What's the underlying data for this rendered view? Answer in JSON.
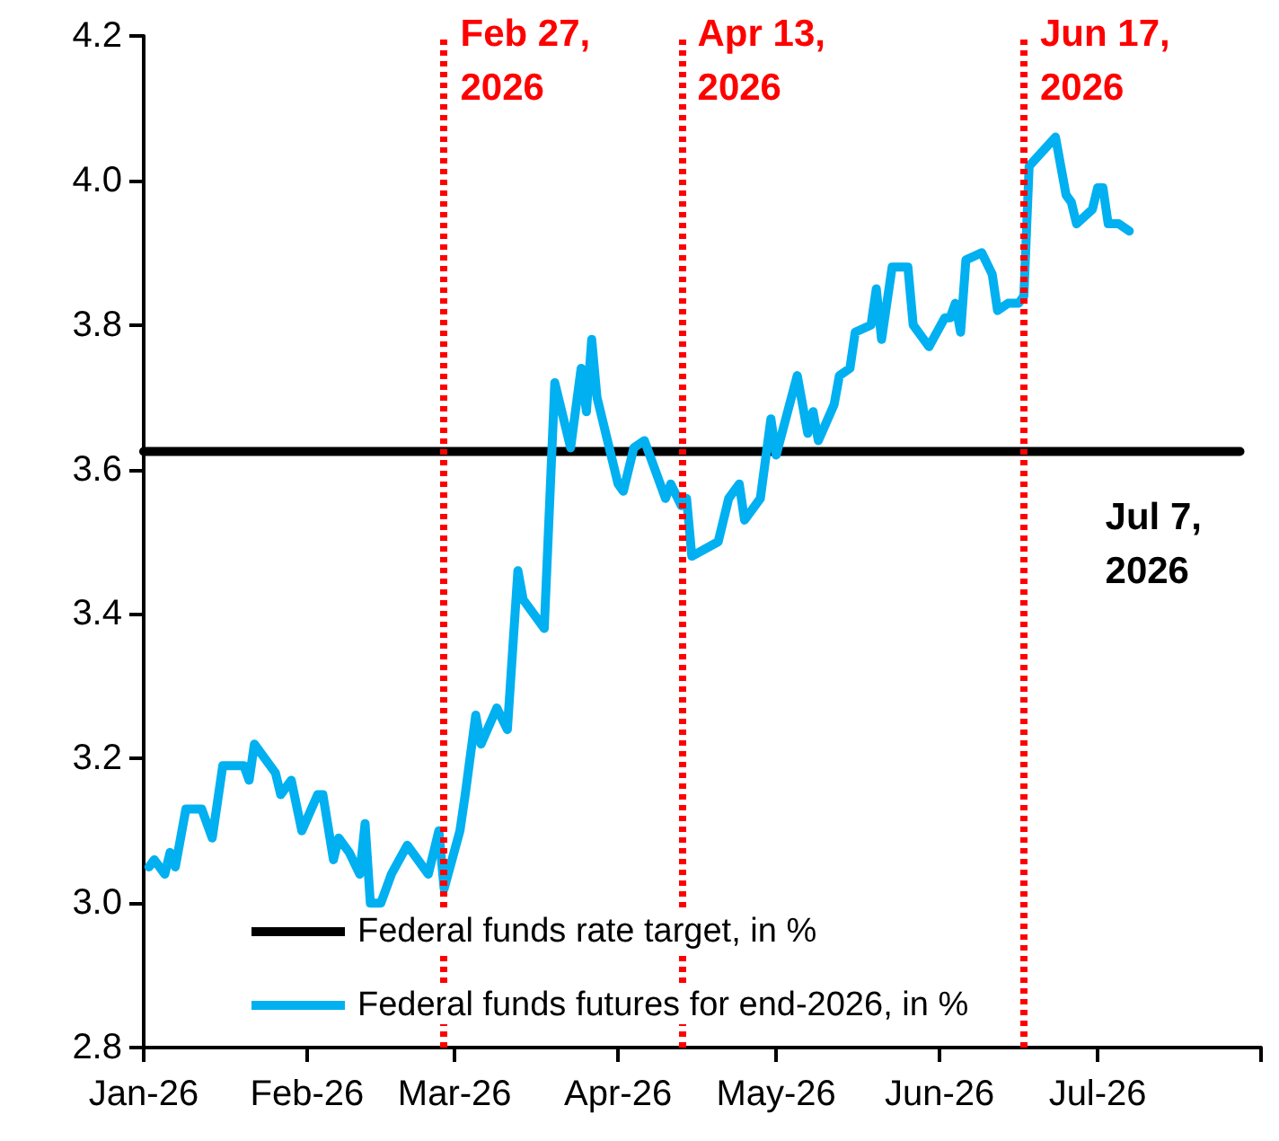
{
  "chart_data": {
    "type": "line",
    "xlim": [
      "2026-01-01",
      "2026-08-01"
    ],
    "xticks": [
      {
        "value": "2026-01-01",
        "label": "Jan-26"
      },
      {
        "value": "2026-02-01",
        "label": "Feb-26"
      },
      {
        "value": "2026-03-01",
        "label": "Mar-26"
      },
      {
        "value": "2026-04-01",
        "label": "Apr-26"
      },
      {
        "value": "2026-05-01",
        "label": "May-26"
      },
      {
        "value": "2026-06-01",
        "label": "Jun-26"
      },
      {
        "value": "2026-07-01",
        "label": "Jul-26"
      },
      {
        "value": "2026-08-01",
        "label": null
      }
    ],
    "ylim": [
      2.8,
      4.2
    ],
    "yticks": [
      2.8,
      {
        "value": 3,
        "label": "3.0"
      },
      3.2,
      3.4,
      3.6,
      3.8,
      {
        "value": 4,
        "label": "4.0"
      },
      4.2
    ],
    "series": [
      {
        "name": "Federal funds rate target, in %",
        "color": "#000000",
        "x": [
          "2026-01-01",
          "2026-07-28"
        ],
        "values": [
          3.625,
          3.625
        ]
      },
      {
        "name": "Federal funds futures for end-2026, in %",
        "color": "#00b0f0",
        "x": [
          "2026-01-02",
          "2026-01-03",
          "2026-01-05",
          "2026-01-06",
          "2026-01-07",
          "2026-01-09",
          "2026-01-12",
          "2026-01-14",
          "2026-01-16",
          "2026-01-20",
          "2026-01-21",
          "2026-01-22",
          "2026-01-26",
          "2026-01-27",
          "2026-01-29",
          "2026-01-31",
          "2026-02-03",
          "2026-02-04",
          "2026-02-06",
          "2026-02-07",
          "2026-02-09",
          "2026-02-11",
          "2026-02-12",
          "2026-02-13",
          "2026-02-15",
          "2026-02-17",
          "2026-02-20",
          "2026-02-24",
          "2026-02-26",
          "2026-02-27",
          "2026-03-02",
          "2026-03-03",
          "2026-03-05",
          "2026-03-06",
          "2026-03-09",
          "2026-03-11",
          "2026-03-13",
          "2026-03-14",
          "2026-03-18",
          "2026-03-20",
          "2026-03-23",
          "2026-03-25",
          "2026-03-26",
          "2026-03-27",
          "2026-03-28",
          "2026-04-01",
          "2026-04-02",
          "2026-04-04",
          "2026-04-06",
          "2026-04-10",
          "2026-04-11",
          "2026-04-13",
          "2026-04-14",
          "2026-04-15",
          "2026-04-20",
          "2026-04-22",
          "2026-04-24",
          "2026-04-25",
          "2026-04-28",
          "2026-04-30",
          "2026-05-01",
          "2026-05-05",
          "2026-05-07",
          "2026-05-08",
          "2026-05-09",
          "2026-05-12",
          "2026-05-13",
          "2026-05-15",
          "2026-05-16",
          "2026-05-19",
          "2026-05-20",
          "2026-05-21",
          "2026-05-23",
          "2026-05-26",
          "2026-05-27",
          "2026-05-30",
          "2026-06-02",
          "2026-06-03",
          "2026-06-04",
          "2026-06-05",
          "2026-06-06",
          "2026-06-09",
          "2026-06-11",
          "2026-06-12",
          "2026-06-14",
          "2026-06-16",
          "2026-06-17",
          "2026-06-18",
          "2026-06-23",
          "2026-06-25",
          "2026-06-26",
          "2026-06-27",
          "2026-06-30",
          "2026-07-01",
          "2026-07-02",
          "2026-07-03",
          "2026-07-05",
          "2026-07-07"
        ],
        "values": [
          3.05,
          3.06,
          3.04,
          3.07,
          3.05,
          3.13,
          3.13,
          3.09,
          3.19,
          3.19,
          3.17,
          3.22,
          3.18,
          3.15,
          3.17,
          3.1,
          3.15,
          3.15,
          3.06,
          3.09,
          3.07,
          3.04,
          3.11,
          3.0,
          3.0,
          3.04,
          3.08,
          3.04,
          3.1,
          3.02,
          3.1,
          3.15,
          3.26,
          3.22,
          3.27,
          3.24,
          3.46,
          3.42,
          3.38,
          3.72,
          3.63,
          3.74,
          3.68,
          3.78,
          3.7,
          3.58,
          3.57,
          3.63,
          3.64,
          3.56,
          3.58,
          3.55,
          3.56,
          3.48,
          3.5,
          3.56,
          3.58,
          3.53,
          3.56,
          3.67,
          3.62,
          3.73,
          3.65,
          3.68,
          3.64,
          3.69,
          3.73,
          3.74,
          3.79,
          3.8,
          3.85,
          3.78,
          3.88,
          3.88,
          3.8,
          3.77,
          3.81,
          3.81,
          3.83,
          3.79,
          3.89,
          3.9,
          3.87,
          3.82,
          3.83,
          3.83,
          3.84,
          4.02,
          4.06,
          3.98,
          3.97,
          3.94,
          3.96,
          3.99,
          3.99,
          3.94,
          3.94,
          3.93
        ]
      }
    ],
    "ref_lines": [
      {
        "axis": "x",
        "value": "2026-02-27",
        "label": "Feb 27, 2026",
        "color": "#ff0000",
        "line_style": "dotted"
      },
      {
        "axis": "x",
        "value": "2026-04-13",
        "label": "Apr 13, 2026",
        "color": "#ff0000",
        "line_style": "dotted"
      },
      {
        "axis": "x",
        "value": "2026-06-17",
        "label": "Jun 17, 2026",
        "color": "#ff0000",
        "line_style": "dotted"
      }
    ],
    "annotations": [
      "Jul 7, 2026"
    ],
    "legend": "bottom",
    "grid": false,
    "marker": "none",
    "line_style": "solid"
  }
}
